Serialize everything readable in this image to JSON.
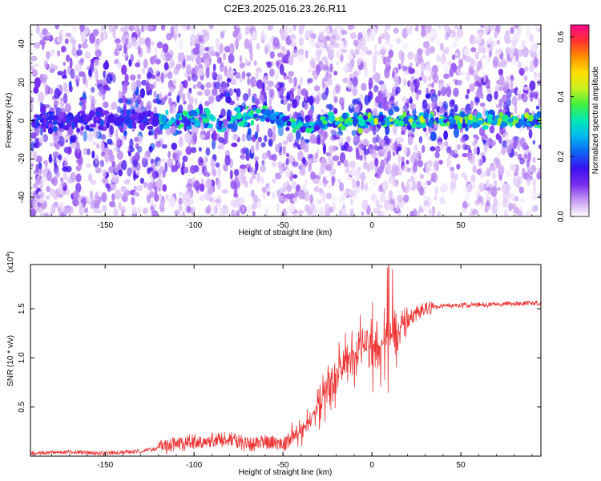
{
  "title": "C2E3.2025.016.23.26.R11",
  "chart_data": [
    {
      "type": "heatmap",
      "xlabel": "Height of straight line (km)",
      "ylabel": "Frequency (Hz)",
      "xlim": [
        -192,
        95
      ],
      "ylim": [
        -50,
        50
      ],
      "xticks": [
        -150,
        -100,
        -50,
        0,
        50
      ],
      "yticks": [
        -40,
        -20,
        0,
        20,
        40
      ],
      "colorbar": {
        "label": "Normalized spectral amplitude",
        "range": [
          0.0,
          0.64
        ],
        "ticks": [
          "0.0",
          "0.2",
          "0.4",
          "0.6"
        ],
        "colors": [
          "#ffffff",
          "#c79cf2",
          "#7a2cf0",
          "#3a12f0",
          "#1060f5",
          "#00b8f0",
          "#00e8b8",
          "#40f040",
          "#c8f020",
          "#ffe000",
          "#ff9000",
          "#ff3030",
          "#ff0890"
        ]
      },
      "description_values": {
        "ridge_frequency_hz": 0,
        "ridge_start_km": -120,
        "ridge_peak_amplitude": 0.45
      }
    },
    {
      "type": "line",
      "xlabel": "Height of straight line (km)",
      "ylabel": "SNR (10 * v/v)",
      "ymultiplier": "(x10",
      "ymultiplier_exp": "4",
      "ymultiplier_close": ")",
      "xlim": [
        -192,
        95
      ],
      "ylim": [
        0,
        1.95
      ],
      "xticks": [
        -150,
        -100,
        -50,
        0,
        50
      ],
      "yticks": [
        0.5,
        1.0,
        1.5
      ],
      "series": [
        {
          "color": "#ee3333",
          "anchors": [
            [
              -192,
              0.03
            ],
            [
              -170,
              0.04
            ],
            [
              -150,
              0.03
            ],
            [
              -130,
              0.05
            ],
            [
              -120,
              0.08
            ],
            [
              -110,
              0.12
            ],
            [
              -100,
              0.15
            ],
            [
              -90,
              0.16
            ],
            [
              -80,
              0.17
            ],
            [
              -70,
              0.12
            ],
            [
              -60,
              0.14
            ],
            [
              -50,
              0.12
            ],
            [
              -45,
              0.18
            ],
            [
              -40,
              0.25
            ],
            [
              -35,
              0.35
            ],
            [
              -30,
              0.55
            ],
            [
              -25,
              0.7
            ],
            [
              -20,
              0.85
            ],
            [
              -15,
              1.0
            ],
            [
              -10,
              1.05
            ],
            [
              -5,
              1.1
            ],
            [
              0,
              1.1
            ],
            [
              5,
              1.12
            ],
            [
              10,
              1.2
            ],
            [
              15,
              1.3
            ],
            [
              20,
              1.38
            ],
            [
              25,
              1.45
            ],
            [
              30,
              1.5
            ],
            [
              40,
              1.53
            ],
            [
              60,
              1.54
            ],
            [
              80,
              1.55
            ],
            [
              95,
              1.56
            ]
          ]
        }
      ]
    }
  ]
}
